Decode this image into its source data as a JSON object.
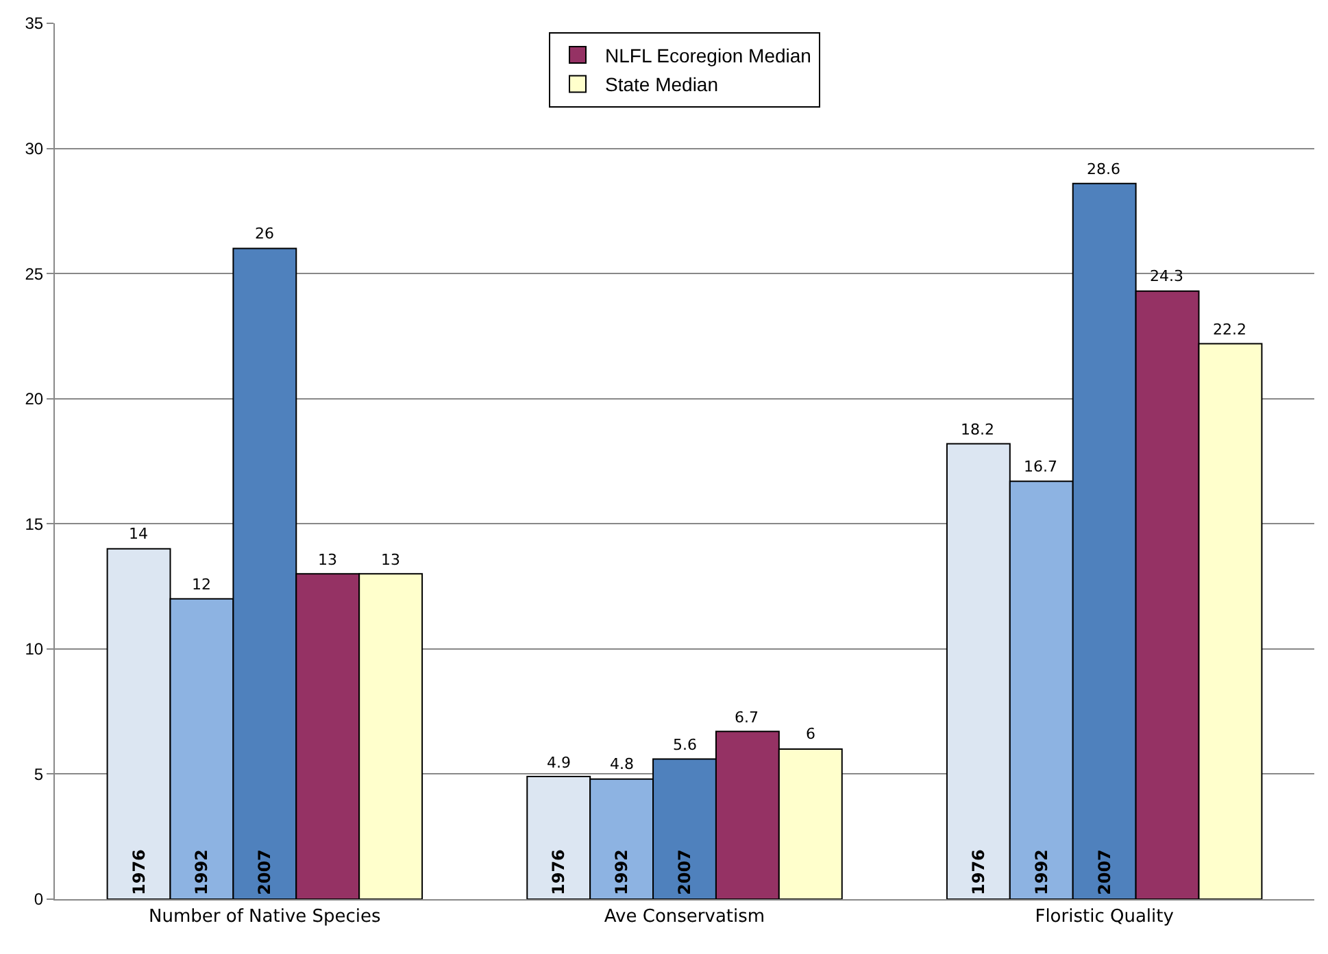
{
  "chart_data": {
    "type": "bar",
    "categories": [
      "Number of Native Species",
      "Ave Conservatism",
      "Floristic Quality"
    ],
    "series": [
      {
        "name": "1976",
        "color": "#dce6f2",
        "values": [
          14,
          4.9,
          18.2
        ]
      },
      {
        "name": "1992",
        "color": "#8db3e2",
        "values": [
          12,
          4.8,
          16.7
        ]
      },
      {
        "name": "2007",
        "color": "#4f81bd",
        "values": [
          26,
          5.6,
          28.6
        ]
      },
      {
        "name": "NLFL Ecoregion Median",
        "color": "#953264",
        "values": [
          13,
          6.7,
          24.3
        ]
      },
      {
        "name": "State Median",
        "color": "#ffffcc",
        "values": [
          13,
          6,
          22.2
        ]
      }
    ],
    "ylim": [
      0,
      35
    ],
    "yticks": [
      0,
      5,
      10,
      15,
      20,
      25,
      30,
      35
    ],
    "grid": "y",
    "legend": "top",
    "data_labels": true
  }
}
